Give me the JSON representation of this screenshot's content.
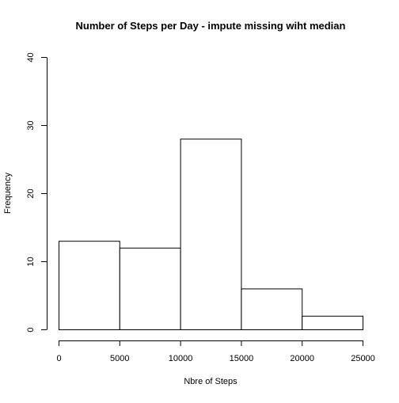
{
  "chart_data": {
    "type": "bar",
    "subtype": "histogram",
    "title": "Number of Steps per Day - impute missing wiht median",
    "xlabel": "Nbre of Steps",
    "ylabel": "Frequency",
    "bins": [
      {
        "x0": 0,
        "x1": 5000,
        "count": 13
      },
      {
        "x0": 5000,
        "x1": 10000,
        "count": 12
      },
      {
        "x0": 10000,
        "x1": 15000,
        "count": 28
      },
      {
        "x0": 15000,
        "x1": 20000,
        "count": 6
      },
      {
        "x0": 20000,
        "x1": 25000,
        "count": 2
      }
    ],
    "xlim": [
      0,
      25000
    ],
    "ylim": [
      0,
      40
    ],
    "x_ticks": [
      0,
      5000,
      10000,
      15000,
      20000,
      25000
    ],
    "x_tick_labels": [
      "0",
      "5000",
      "10000",
      "15000",
      "20000",
      "25000"
    ],
    "y_ticks": [
      0,
      10,
      20,
      30,
      40
    ],
    "y_tick_labels": [
      "0",
      "10",
      "20",
      "30",
      "40"
    ],
    "bar_fill": "#ffffff",
    "bar_stroke": "#000000",
    "grid": false,
    "legend": "none"
  }
}
